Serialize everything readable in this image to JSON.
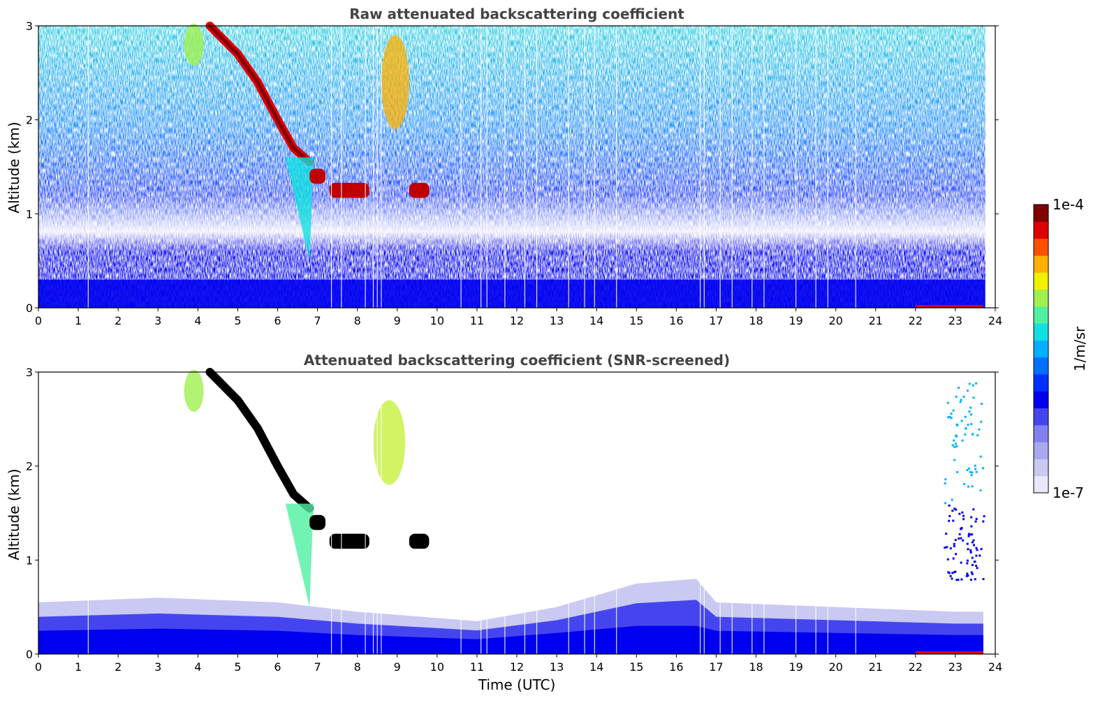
{
  "colors": {
    "colormap": [
      "#e8e8fa",
      "#c9c9f2",
      "#a8a8ee",
      "#8080f0",
      "#4545f0",
      "#0000f0",
      "#0030ff",
      "#0070ff",
      "#00b0ff",
      "#10e0e0",
      "#50f0a0",
      "#a0f050",
      "#f0f000",
      "#ffb000",
      "#ff5000",
      "#e00000",
      "#800000"
    ],
    "saturated": "#000000"
  },
  "chart_data": [
    {
      "type": "heatmap",
      "title": "Raw attenuated backscattering coefficient",
      "xlabel": "",
      "ylabel": "Altitude (km)",
      "xlim": [
        0,
        24
      ],
      "ylim": [
        0,
        3
      ],
      "xticks": [
        "0",
        "1",
        "2",
        "3",
        "4",
        "5",
        "6",
        "7",
        "8",
        "9",
        "10",
        "11",
        "12",
        "13",
        "14",
        "15",
        "16",
        "17",
        "18",
        "19",
        "20",
        "21",
        "22",
        "23",
        "24"
      ],
      "yticks": [
        "0",
        "1",
        "2",
        "3"
      ],
      "features": {
        "boundary_layer_top_km": 0.3,
        "descending_cloud": [
          [
            4.3,
            3.0
          ],
          [
            5.0,
            2.7
          ],
          [
            5.5,
            2.4
          ],
          [
            6.0,
            2.0
          ],
          [
            6.4,
            1.7
          ],
          [
            6.8,
            1.55
          ]
        ],
        "cloud_patches": [
          {
            "t": [
              6.8,
              7.2
            ],
            "alt_km": 1.4
          },
          {
            "t": [
              7.3,
              8.3
            ],
            "alt_km": 1.25
          },
          {
            "t": [
              9.3,
              9.8
            ],
            "alt_km": 1.25
          }
        ],
        "elevated_layer": {
          "t": [
            8.6,
            9.3
          ],
          "alt_km": [
            1.9,
            2.9
          ]
        }
      }
    },
    {
      "type": "heatmap",
      "title": "Attenuated backscattering coefficient (SNR-screened)",
      "xlabel": "Time (UTC)",
      "ylabel": "Altitude (km)",
      "xlim": [
        0,
        24
      ],
      "ylim": [
        0,
        3
      ],
      "xticks": [
        "0",
        "1",
        "2",
        "3",
        "4",
        "5",
        "6",
        "7",
        "8",
        "9",
        "10",
        "11",
        "12",
        "13",
        "14",
        "15",
        "16",
        "17",
        "18",
        "19",
        "20",
        "21",
        "22",
        "23",
        "24"
      ],
      "yticks": [
        "0",
        "1",
        "2",
        "3"
      ],
      "features": {
        "boundary_layer_top_km": [
          [
            0,
            0.55
          ],
          [
            3,
            0.6
          ],
          [
            6,
            0.55
          ],
          [
            8,
            0.45
          ],
          [
            11,
            0.35
          ],
          [
            13,
            0.5
          ],
          [
            15,
            0.75
          ],
          [
            16.5,
            0.8
          ],
          [
            17,
            0.55
          ],
          [
            20,
            0.5
          ],
          [
            23,
            0.45
          ],
          [
            23.7,
            0.45
          ]
        ],
        "descending_cloud": [
          [
            4.3,
            3.0
          ],
          [
            5.0,
            2.7
          ],
          [
            5.5,
            2.4
          ],
          [
            6.0,
            2.0
          ],
          [
            6.4,
            1.7
          ],
          [
            6.8,
            1.55
          ]
        ],
        "cloud_patches": [
          {
            "t": [
              6.8,
              7.2
            ],
            "alt_km": 1.4
          },
          {
            "t": [
              7.3,
              8.3
            ],
            "alt_km": 1.2
          },
          {
            "t": [
              9.3,
              9.8
            ],
            "alt_km": 1.2
          }
        ],
        "elevated_layer": {
          "t": [
            8.4,
            9.2
          ],
          "alt_km": [
            1.8,
            2.7
          ]
        },
        "late_plume": {
          "t": [
            22.7,
            23.7
          ],
          "alt_km": [
            0.8,
            2.9
          ]
        }
      }
    }
  ],
  "colorbar": {
    "label": "1/m/sr",
    "max_label": "1e-4",
    "min_label": "1e-7",
    "range": [
      1e-07,
      0.0001
    ],
    "scale": "log"
  }
}
